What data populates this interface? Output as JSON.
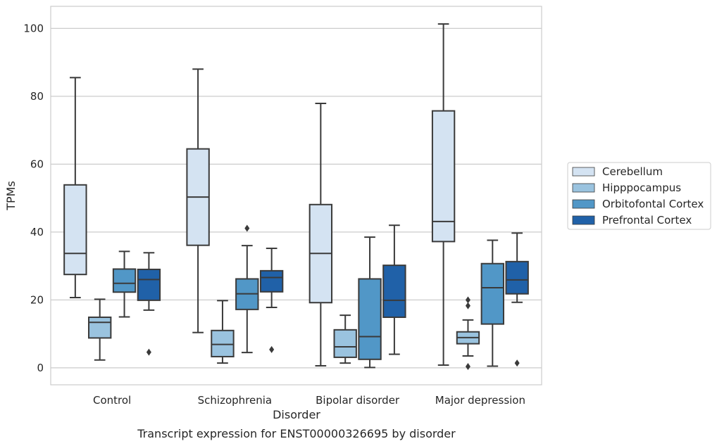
{
  "chart_data": {
    "type": "box",
    "caption": "Transcript expression for ENST00000326695 by disorder",
    "xlabel": "Disorder",
    "ylabel": "TPMs",
    "ylim": [
      -5,
      106.5
    ],
    "yticks": [
      0,
      20,
      40,
      60,
      80,
      100
    ],
    "grid": true,
    "legend_placement": "outside-right",
    "categories": [
      "Control",
      "Schizophrenia",
      "Bipolar disorder",
      "Major depression"
    ],
    "series": [
      {
        "name": "Cerebellum",
        "color": "#d4e3f2",
        "boxes": [
          {
            "whislo": 20.7,
            "q1": 27.5,
            "med": 33.7,
            "q3": 53.9,
            "whishi": 85.5,
            "fliers": []
          },
          {
            "whislo": 10.4,
            "q1": 36.1,
            "med": 50.3,
            "q3": 64.5,
            "whishi": 88.0,
            "fliers": []
          },
          {
            "whislo": 0.6,
            "q1": 19.2,
            "med": 33.7,
            "q3": 48.1,
            "whishi": 77.9,
            "fliers": []
          },
          {
            "whislo": 0.8,
            "q1": 37.2,
            "med": 43.1,
            "q3": 75.7,
            "whishi": 101.3,
            "fliers": []
          }
        ]
      },
      {
        "name": "Hipppocampus",
        "color": "#9ac3df",
        "boxes": [
          {
            "whislo": 2.3,
            "q1": 8.8,
            "med": 13.4,
            "q3": 14.9,
            "whishi": 20.2,
            "fliers": []
          },
          {
            "whislo": 1.4,
            "q1": 3.3,
            "med": 6.9,
            "q3": 11.0,
            "whishi": 19.8,
            "fliers": []
          },
          {
            "whislo": 1.4,
            "q1": 3.1,
            "med": 6.2,
            "q3": 11.2,
            "whishi": 15.5,
            "fliers": []
          },
          {
            "whislo": 3.5,
            "q1": 7.1,
            "med": 8.9,
            "q3": 10.6,
            "whishi": 14.1,
            "fliers": [
              20.0,
              18.3,
              0.4
            ]
          }
        ]
      },
      {
        "name": "Orbitofontal Cortex",
        "color": "#5197c7",
        "boxes": [
          {
            "whislo": 15.0,
            "q1": 22.3,
            "med": 24.9,
            "q3": 29.1,
            "whishi": 34.3,
            "fliers": []
          },
          {
            "whislo": 4.5,
            "q1": 17.2,
            "med": 21.8,
            "q3": 26.2,
            "whishi": 36.0,
            "fliers": [
              41.1
            ]
          },
          {
            "whislo": 0.1,
            "q1": 2.5,
            "med": 9.2,
            "q3": 26.2,
            "whishi": 38.5,
            "fliers": []
          },
          {
            "whislo": 0.5,
            "q1": 12.9,
            "med": 23.6,
            "q3": 30.7,
            "whishi": 37.6,
            "fliers": []
          }
        ]
      },
      {
        "name": "Prefrontal Cortex",
        "color": "#2061a8",
        "boxes": [
          {
            "whislo": 17.0,
            "q1": 19.9,
            "med": 26.0,
            "q3": 29.0,
            "whishi": 33.9,
            "fliers": [
              4.6
            ]
          },
          {
            "whislo": 17.8,
            "q1": 22.4,
            "med": 26.6,
            "q3": 28.6,
            "whishi": 35.2,
            "fliers": [
              5.4
            ]
          },
          {
            "whislo": 4.0,
            "q1": 14.9,
            "med": 19.9,
            "q3": 30.2,
            "whishi": 42.0,
            "fliers": []
          },
          {
            "whislo": 19.3,
            "q1": 21.8,
            "med": 25.9,
            "q3": 31.3,
            "whishi": 39.7,
            "fliers": [
              1.4
            ]
          }
        ]
      }
    ]
  }
}
